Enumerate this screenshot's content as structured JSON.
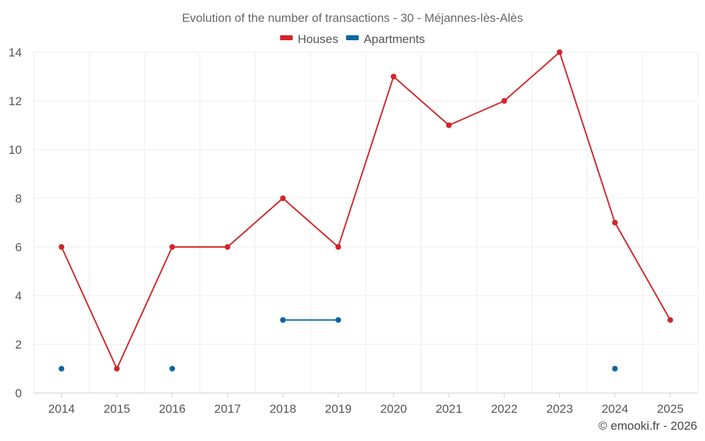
{
  "chart_data": {
    "type": "line",
    "title": "Evolution of the number of transactions - 30 - Méjannes-lès-Alès",
    "categories": [
      "2014",
      "2015",
      "2016",
      "2017",
      "2018",
      "2019",
      "2020",
      "2021",
      "2022",
      "2023",
      "2024",
      "2025"
    ],
    "ylim": [
      0,
      14
    ],
    "yticks": [
      0,
      2,
      4,
      6,
      8,
      10,
      12,
      14
    ],
    "grid": true,
    "legend_position": "top",
    "series": [
      {
        "name": "Houses",
        "color": "#d0262a",
        "values": [
          6,
          1,
          6,
          6,
          8,
          6,
          13,
          11,
          12,
          14,
          7,
          3
        ]
      },
      {
        "name": "Apartments",
        "color": "#0868a0",
        "values": [
          1,
          null,
          1,
          null,
          3,
          3,
          null,
          null,
          null,
          null,
          1,
          null
        ]
      }
    ]
  },
  "credit": "© emooki.fr - 2026"
}
